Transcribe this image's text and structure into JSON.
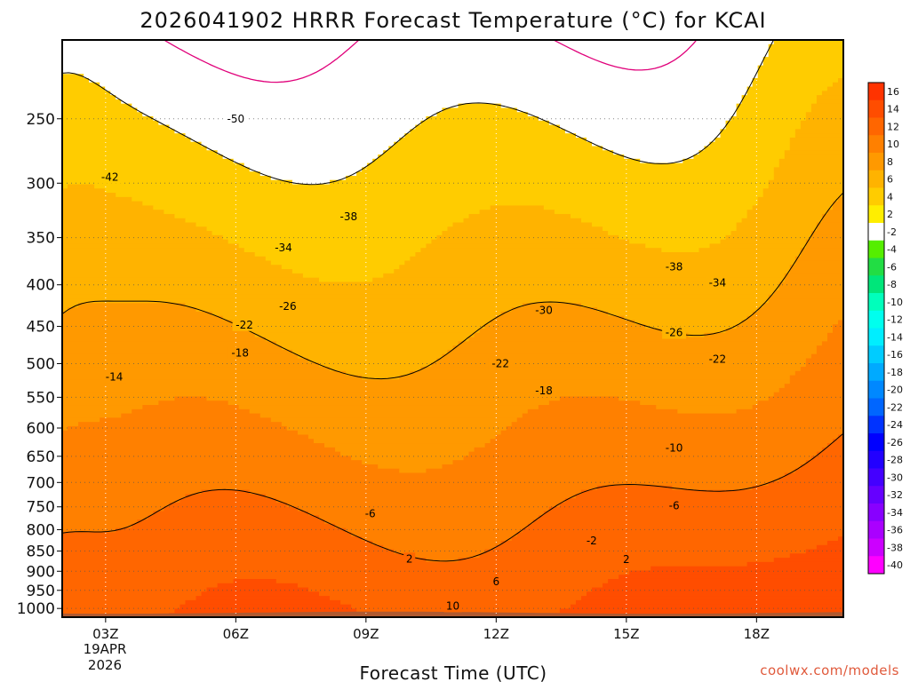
{
  "chart_data": {
    "type": "heatmap",
    "title": "2026041902 HRRR Forecast Temperature (°C) for KCAI",
    "xlabel": "Forecast Time (UTC)",
    "ylabel": "",
    "x_ticks": [
      "03Z",
      "06Z",
      "09Z",
      "12Z",
      "15Z",
      "18Z"
    ],
    "x_date": [
      "19APR",
      "2026"
    ],
    "x_range_hours": [
      2,
      20
    ],
    "y_ticks": [
      "250",
      "300",
      "350",
      "400",
      "450",
      "500",
      "550",
      "600",
      "650",
      "700",
      "750",
      "800",
      "850",
      "900",
      "950",
      "1000"
    ],
    "y_units": "hPa",
    "y_range_hpa": [
      200,
      1025
    ],
    "colorbar_levels": [
      "16",
      "14",
      "12",
      "10",
      "8",
      "6",
      "4",
      "2",
      "-2",
      "-4",
      "-6",
      "-8",
      "-10",
      "-12",
      "-14",
      "-16",
      "-18",
      "-20",
      "-22",
      "-24",
      "-26",
      "-28",
      "-30",
      "-32",
      "-34",
      "-36",
      "-38",
      "-40"
    ],
    "colorbar_colors": [
      "#ff3300",
      "#ff4d00",
      "#ff6600",
      "#ff8000",
      "#ff9900",
      "#ffb300",
      "#ffcc00",
      "#ffee00",
      "#ffffff",
      "#55ee00",
      "#22dd44",
      "#00e67a",
      "#00ffbb",
      "#00ffee",
      "#00eeff",
      "#00ccff",
      "#00aaff",
      "#0088ff",
      "#0066ff",
      "#0033ff",
      "#0000ff",
      "#2200ff",
      "#4400ff",
      "#6600ff",
      "#8800ff",
      "#aa00ff",
      "#cc00ff",
      "#ff00ff"
    ],
    "ground_color": "#b05a30",
    "contour_labels": [
      {
        "text": "-50",
        "t": 6.0,
        "p": 250
      },
      {
        "text": "-42",
        "t": 3.1,
        "p": 295
      },
      {
        "text": "-38",
        "t": 8.6,
        "p": 330
      },
      {
        "text": "-34",
        "t": 7.1,
        "p": 360
      },
      {
        "text": "-26",
        "t": 7.2,
        "p": 425
      },
      {
        "text": "-22",
        "t": 6.2,
        "p": 448
      },
      {
        "text": "-18",
        "t": 6.1,
        "p": 485
      },
      {
        "text": "-14",
        "t": 3.2,
        "p": 519
      },
      {
        "text": "-38",
        "t": 16.1,
        "p": 380
      },
      {
        "text": "-34",
        "t": 17.1,
        "p": 398
      },
      {
        "text": "-30",
        "t": 13.1,
        "p": 430
      },
      {
        "text": "-26",
        "t": 16.1,
        "p": 458
      },
      {
        "text": "-22",
        "t": 17.1,
        "p": 494
      },
      {
        "text": "-22",
        "t": 12.1,
        "p": 500
      },
      {
        "text": "-18",
        "t": 13.1,
        "p": 540
      },
      {
        "text": "-10",
        "t": 16.1,
        "p": 635
      },
      {
        "text": "-6",
        "t": 9.1,
        "p": 765
      },
      {
        "text": "-6",
        "t": 16.1,
        "p": 748
      },
      {
        "text": "-2",
        "t": 14.2,
        "p": 826
      },
      {
        "text": "2",
        "t": 10.0,
        "p": 869
      },
      {
        "text": "2",
        "t": 15.0,
        "p": 870
      },
      {
        "text": "6",
        "t": 12.0,
        "p": 927
      },
      {
        "text": "10",
        "t": 11.0,
        "p": 993
      }
    ]
  },
  "credit": "coolwx.com/models"
}
